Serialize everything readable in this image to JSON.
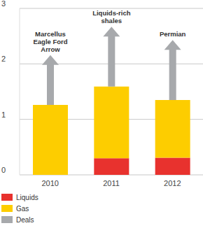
{
  "chart_data": {
    "type": "bar",
    "stacked": true,
    "categories": [
      "2010",
      "2011",
      "2012"
    ],
    "series": [
      {
        "name": "Liquids",
        "color": "#e8322e",
        "values": [
          0,
          0.3,
          0.31
        ]
      },
      {
        "name": "Gas",
        "color": "#fdcd00",
        "values": [
          1.26,
          1.29,
          1.04
        ]
      },
      {
        "name": "Deals",
        "color": "#a7a9ac",
        "marker": "arrow",
        "values": [
          0.9,
          1.08,
          1.08
        ]
      }
    ],
    "annotations": [
      {
        "category": "2010",
        "text": [
          "Marcellus",
          "Eagle Ford",
          "Arrow"
        ]
      },
      {
        "category": "2011",
        "text": [
          "Liquids-rich",
          "shales"
        ]
      },
      {
        "category": "2012",
        "text": [
          "Permian"
        ]
      }
    ],
    "ylim": [
      0,
      3
    ],
    "yticks": [
      0,
      1,
      2,
      3
    ],
    "grid": true,
    "legend": "lower left"
  }
}
